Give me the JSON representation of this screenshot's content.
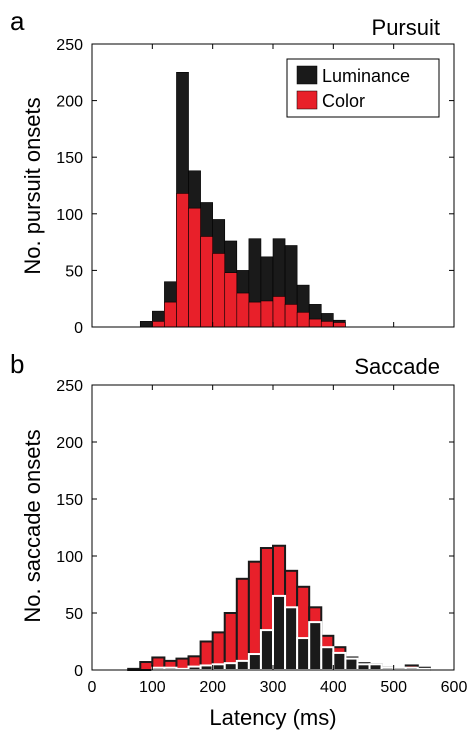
{
  "colors": {
    "luminance": "#1a1a1a",
    "color": "#e8202a",
    "saccade_outline_dark": "#1a1a1a",
    "saccade_outline_white": "#ffffff"
  },
  "chart_data": [
    {
      "type": "bar",
      "panel_label": "a",
      "title": "Pursuit",
      "xlabel": "",
      "ylabel": "No. pursuit onsets",
      "xlim": [
        0,
        600
      ],
      "ylim": [
        0,
        250
      ],
      "xticks": [],
      "yticks": [
        0,
        50,
        100,
        150,
        200,
        250
      ],
      "bin_width": 20,
      "legend_position": "top-right",
      "series": [
        {
          "name": "Luminance",
          "bins": [
            80,
            100,
            120,
            140,
            160,
            180,
            200,
            220,
            240,
            260,
            280,
            300,
            320,
            340,
            360,
            380,
            400
          ],
          "values": [
            5,
            14,
            40,
            225,
            138,
            110,
            95,
            76,
            50,
            78,
            62,
            78,
            72,
            37,
            20,
            12,
            6
          ]
        },
        {
          "name": "Color",
          "bins": [
            100,
            120,
            140,
            160,
            180,
            200,
            220,
            240,
            260,
            280,
            300,
            320,
            340,
            360,
            380,
            400
          ],
          "values": [
            5,
            22,
            118,
            105,
            80,
            65,
            48,
            30,
            22,
            23,
            27,
            20,
            13,
            7,
            5,
            4
          ]
        }
      ]
    },
    {
      "type": "bar",
      "panel_label": "b",
      "title": "Saccade",
      "xlabel": "Latency (ms)",
      "ylabel": "No. saccade onsets",
      "xlim": [
        0,
        600
      ],
      "ylim": [
        0,
        250
      ],
      "xticks": [
        0,
        100,
        200,
        300,
        400,
        500,
        600
      ],
      "yticks": [
        0,
        50,
        100,
        150,
        200,
        250
      ],
      "bin_width": 20,
      "series": [
        {
          "name": "Color",
          "bins": [
            60,
            80,
            100,
            120,
            140,
            160,
            180,
            200,
            220,
            240,
            260,
            280,
            300,
            320,
            340,
            360,
            380,
            400,
            420,
            440,
            460,
            480,
            500,
            520,
            540
          ],
          "values": [
            1,
            7,
            11,
            8,
            10,
            12,
            25,
            33,
            50,
            80,
            95,
            107,
            109,
            87,
            73,
            55,
            30,
            20,
            11,
            6,
            5,
            2,
            1,
            4,
            2
          ]
        },
        {
          "name": "Luminance",
          "bins": [
            100,
            120,
            140,
            160,
            180,
            200,
            220,
            240,
            260,
            280,
            300,
            320,
            340,
            360,
            380,
            400,
            420,
            440,
            460,
            480,
            500,
            520,
            540
          ],
          "values": [
            2,
            2,
            1,
            3,
            4,
            5,
            6,
            8,
            14,
            35,
            65,
            55,
            28,
            42,
            20,
            15,
            10,
            5,
            5,
            2,
            2,
            2,
            1
          ]
        }
      ]
    }
  ]
}
